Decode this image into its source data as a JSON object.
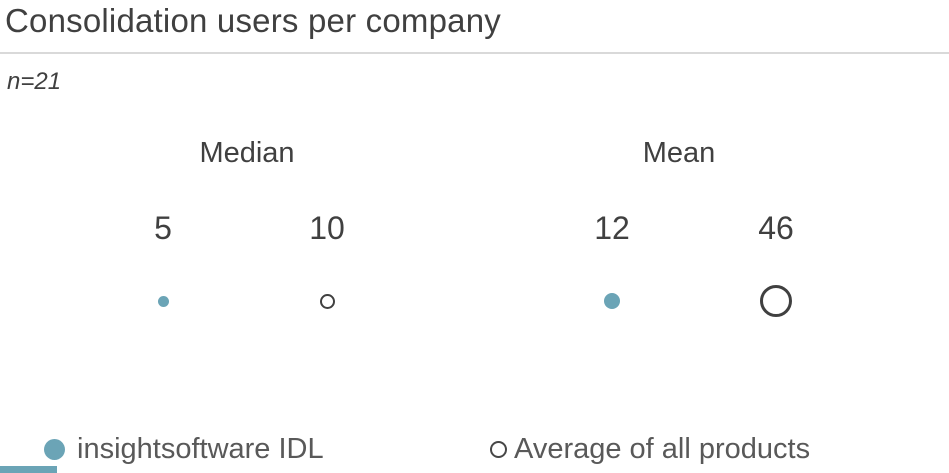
{
  "page": {
    "title": "Consolidation users per company",
    "sample_note": "n=21"
  },
  "colors": {
    "accent_teal": "#6ba4b6",
    "text_dark": "#404040",
    "legend_text_gray": "#595959",
    "divider_gray": "#d9d9d9",
    "open_circle_outline": "#404040",
    "background": "#ffffff"
  },
  "chart_data": {
    "type": "scatter",
    "title": "Consolidation users per company",
    "subtitle": "n=21",
    "categories": [
      "Median",
      "Mean"
    ],
    "series": [
      {
        "name": "insightsoftware IDL",
        "marker": "filled",
        "color": "#6ba4b6",
        "values": [
          5,
          12
        ]
      },
      {
        "name": "Average of all products",
        "marker": "open",
        "color": "#404040",
        "values": [
          10,
          46
        ]
      }
    ],
    "marker_sizing": "diameter proportional to sqrt(value)",
    "marker_scale_px_per_sqrt": 4.7,
    "legend_position": "bottom",
    "grid": false,
    "axes": false
  }
}
